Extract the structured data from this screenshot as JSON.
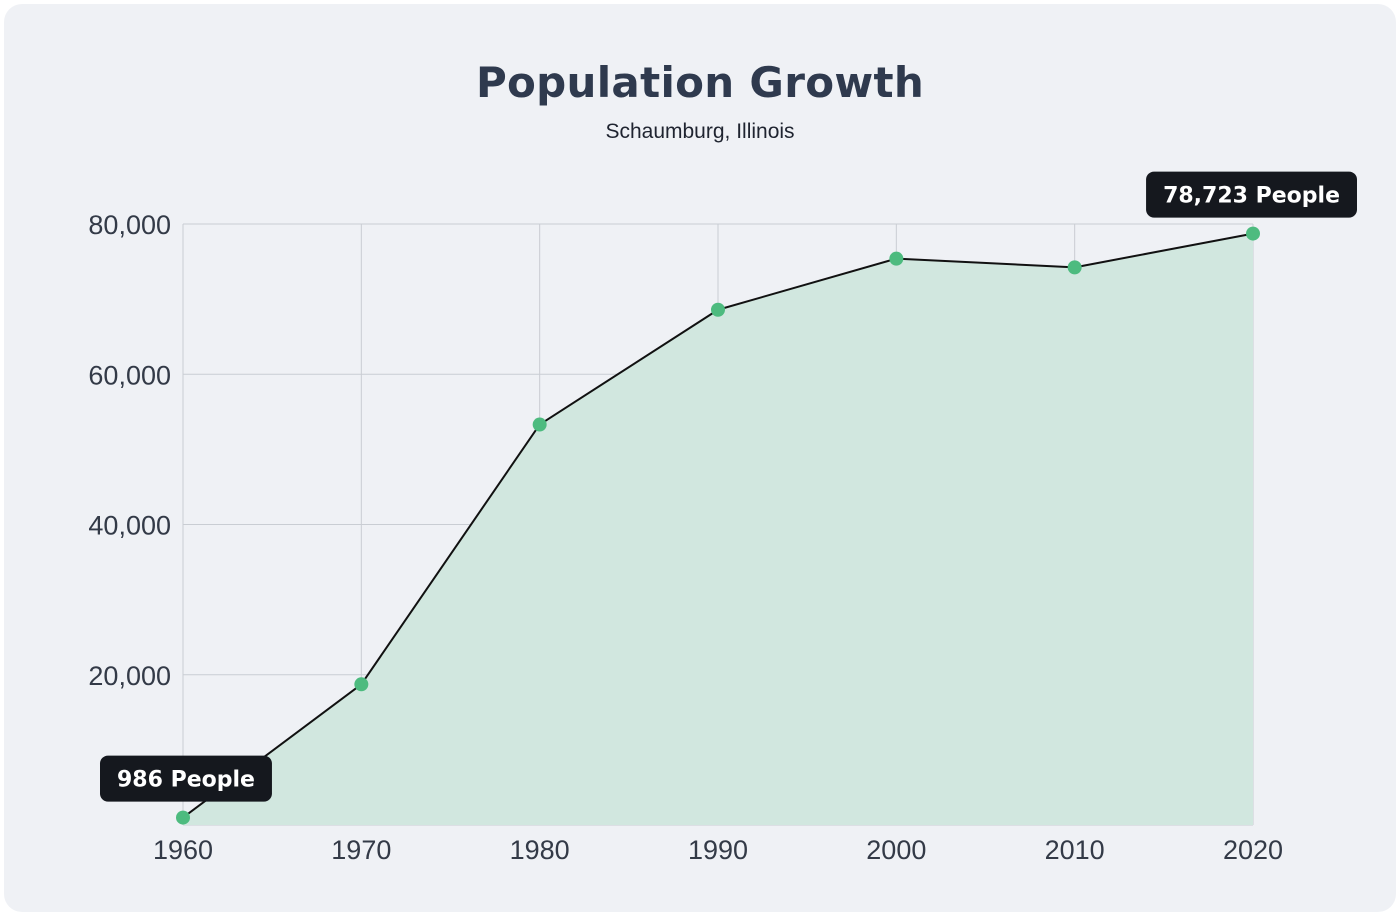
{
  "chart_data": {
    "type": "area",
    "title": "Population Growth",
    "subtitle": "Schaumburg, Illinois",
    "xlabel": "",
    "ylabel": "",
    "x": [
      "1960",
      "1970",
      "1980",
      "1990",
      "2000",
      "2010",
      "2020"
    ],
    "series": [
      {
        "values": [
          986,
          18730,
          53305,
          68586,
          75386,
          74227,
          78723
        ]
      }
    ],
    "ylim": [
      0,
      80000
    ],
    "yticks": [
      20000,
      40000,
      60000,
      80000
    ],
    "ytick_labels": [
      "20,000",
      "40,000",
      "60,000",
      "80,000"
    ],
    "grid": true,
    "annotations": [
      {
        "index": 0,
        "text": "986 People"
      },
      {
        "index": 6,
        "text": "78,723 People"
      }
    ],
    "colors": {
      "line": "#111111",
      "fill": "#d1e7df",
      "marker": "#4dbb7f",
      "grid": "#c9cdd3",
      "callout": "#15181e"
    }
  }
}
